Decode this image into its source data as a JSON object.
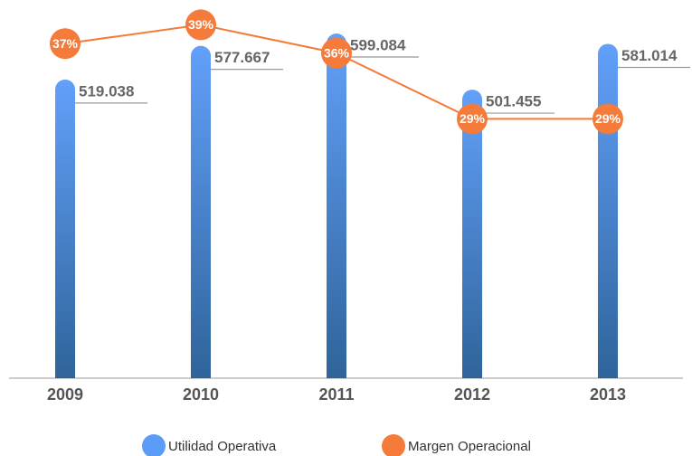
{
  "chart_data": {
    "type": "bar",
    "categories": [
      "2009",
      "2010",
      "2011",
      "2012",
      "2013"
    ],
    "series": [
      {
        "name": "Utilidad Operativa",
        "color": "#5b9cf6",
        "values": [
          519038,
          577667,
          599084,
          501455,
          581014
        ],
        "value_labels": [
          "519.038",
          "577.667",
          "599.084",
          "501.455",
          "581.014"
        ]
      },
      {
        "name": "Margen Operacional",
        "color": "#f47b3a",
        "values": [
          37,
          39,
          36,
          29,
          29
        ],
        "value_labels": [
          "37%",
          "39%",
          "36%",
          "29%",
          "29%"
        ]
      }
    ],
    "legend": "bottom"
  }
}
